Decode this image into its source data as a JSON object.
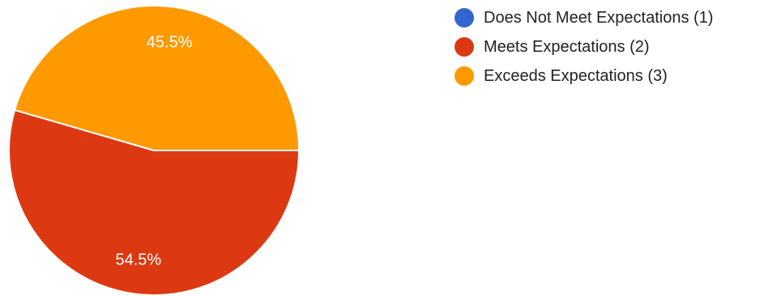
{
  "chart_data": {
    "type": "pie",
    "categories": [
      "Does Not Meet Expectations (1)",
      "Meets Expectations (2)",
      "Exceeds Expectations (3)"
    ],
    "values": [
      0,
      54.5,
      45.5
    ],
    "data_labels": [
      "",
      "54.5%",
      "45.5%"
    ],
    "colors": [
      "#3366cc",
      "#dc3912",
      "#ff9900"
    ],
    "legend_position": "right",
    "title": ""
  }
}
